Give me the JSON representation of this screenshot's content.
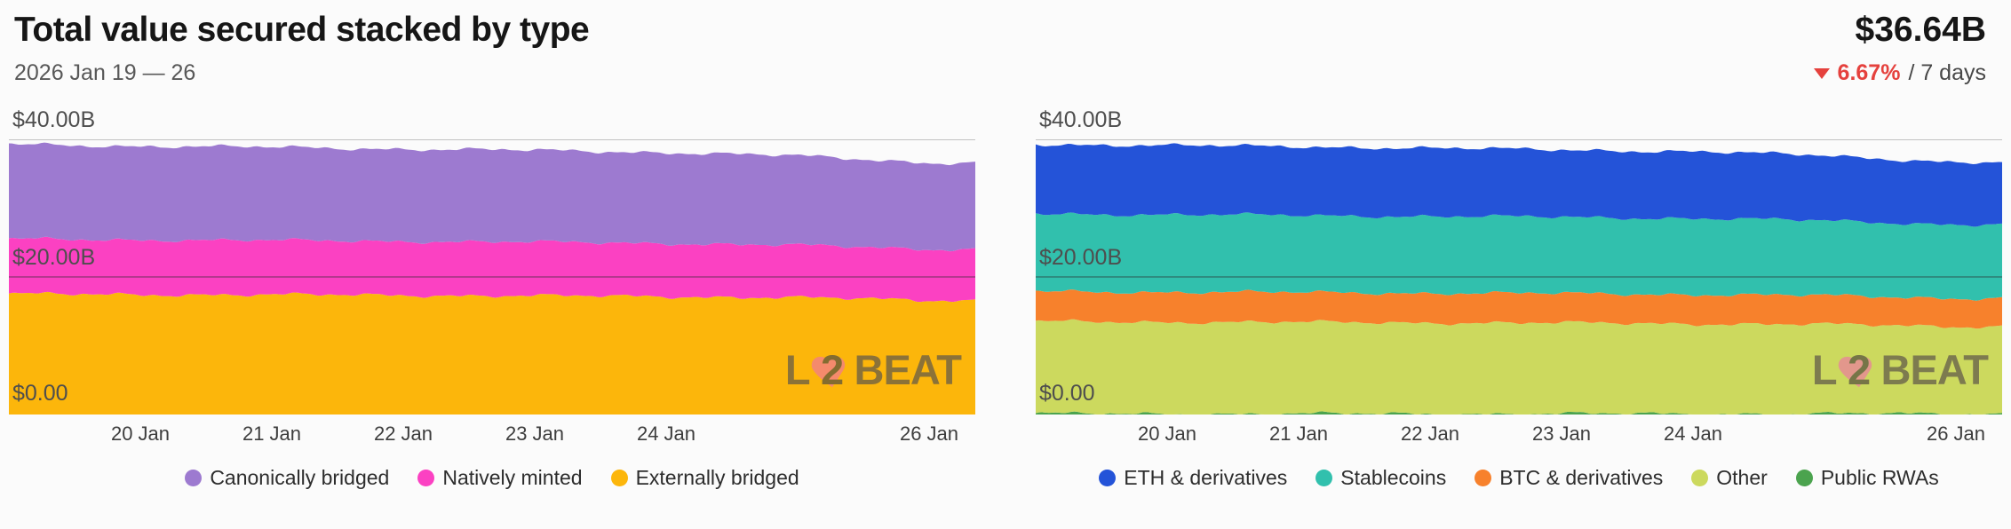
{
  "header": {
    "title": "Total value secured stacked by type",
    "date_range": "2026 Jan 19 — 26",
    "total_value": "$36.64B",
    "change_percent": "6.67%",
    "change_direction": "down",
    "change_suffix": "/ 7 days"
  },
  "watermark": {
    "l": "L",
    "two": "2",
    "beat": "BEAT",
    "heart_color": "#f06ea9"
  },
  "colors": {
    "accent_red": "#e5413d",
    "canonically_bridged": "#9d7ad0",
    "natively_minted": "#fb41c2",
    "externally_bridged": "#fcb60b",
    "eth_derivatives": "#2453d8",
    "stablecoins": "#31c0ad",
    "btc_derivatives": "#f7812c",
    "other": "#ccd95e",
    "public_rwas": "#4ba34e",
    "gridline_top": "#c2c2c2",
    "gridline_mid": "rgba(40,40,40,0.45)"
  },
  "chart_data": [
    {
      "type": "area",
      "stacked": true,
      "unit": "USD billions",
      "ylim": [
        0,
        40
      ],
      "x_domain": [
        0,
        7.35
      ],
      "grid": true,
      "legend_position": "bottom",
      "x": [
        "19 Jan",
        "20 Jan",
        "21 Jan",
        "22 Jan",
        "23 Jan",
        "24 Jan",
        "25 Jan",
        "26 Jan"
      ],
      "x_ticks": [
        1,
        2,
        3,
        4,
        5,
        7
      ],
      "x_tick_labels": [
        "20 Jan",
        "21 Jan",
        "22 Jan",
        "23 Jan",
        "24 Jan",
        "26 Jan"
      ],
      "y_tick_labels": [
        "$40.00B",
        "$20.00B",
        "$0.00"
      ],
      "y_tick_values": [
        40,
        20,
        0
      ],
      "series": [
        {
          "name": "Externally bridged",
          "color": "#fcb60b",
          "values": [
            17.5,
            17.45,
            17.4,
            17.35,
            17.25,
            17.15,
            17.0,
            16.6
          ]
        },
        {
          "name": "Natively minted",
          "color": "#fb41c2",
          "values": [
            8.0,
            7.95,
            7.9,
            7.85,
            7.8,
            7.75,
            7.6,
            7.45
          ]
        },
        {
          "name": "Canonically bridged",
          "color": "#9d7ad0",
          "values": [
            13.8,
            13.6,
            13.55,
            13.4,
            13.35,
            13.2,
            13.0,
            12.55
          ]
        }
      ],
      "legend": [
        {
          "label": "Canonically bridged",
          "color": "#9d7ad0"
        },
        {
          "label": "Natively minted",
          "color": "#fb41c2"
        },
        {
          "label": "Externally bridged",
          "color": "#fcb60b"
        }
      ]
    },
    {
      "type": "area",
      "stacked": true,
      "unit": "USD billions",
      "ylim": [
        0,
        40
      ],
      "x_domain": [
        0,
        7.35
      ],
      "grid": true,
      "legend_position": "bottom",
      "x": [
        "19 Jan",
        "20 Jan",
        "21 Jan",
        "22 Jan",
        "23 Jan",
        "24 Jan",
        "25 Jan",
        "26 Jan"
      ],
      "x_ticks": [
        1,
        2,
        3,
        4,
        5,
        7
      ],
      "x_tick_labels": [
        "20 Jan",
        "21 Jan",
        "22 Jan",
        "23 Jan",
        "24 Jan",
        "26 Jan"
      ],
      "y_tick_labels": [
        "$40.00B",
        "$20.00B",
        "$0.00"
      ],
      "y_tick_values": [
        40,
        20,
        0
      ],
      "series": [
        {
          "name": "Public RWAs",
          "color": "#4ba34e",
          "values": [
            0.1,
            0.1,
            0.1,
            0.1,
            0.1,
            0.1,
            0.1,
            0.1
          ]
        },
        {
          "name": "Other",
          "color": "#ccd95e",
          "values": [
            13.4,
            13.35,
            13.3,
            13.25,
            13.2,
            13.1,
            13.0,
            12.7
          ]
        },
        {
          "name": "BTC & derivatives",
          "color": "#f7812c",
          "values": [
            4.4,
            4.35,
            4.35,
            4.3,
            4.3,
            4.25,
            4.2,
            4.1
          ]
        },
        {
          "name": "Stablecoins",
          "color": "#31c0ad",
          "values": [
            11.3,
            11.25,
            11.2,
            11.15,
            11.1,
            11.05,
            10.9,
            10.7
          ]
        },
        {
          "name": "ETH & derivatives",
          "color": "#2453d8",
          "values": [
            10.1,
            10.05,
            10.0,
            9.9,
            9.8,
            9.7,
            9.5,
            9.0
          ]
        }
      ],
      "legend": [
        {
          "label": "ETH & derivatives",
          "color": "#2453d8"
        },
        {
          "label": "Stablecoins",
          "color": "#31c0ad"
        },
        {
          "label": "BTC & derivatives",
          "color": "#f7812c"
        },
        {
          "label": "Other",
          "color": "#ccd95e"
        },
        {
          "label": "Public RWAs",
          "color": "#4ba34e"
        }
      ]
    }
  ]
}
